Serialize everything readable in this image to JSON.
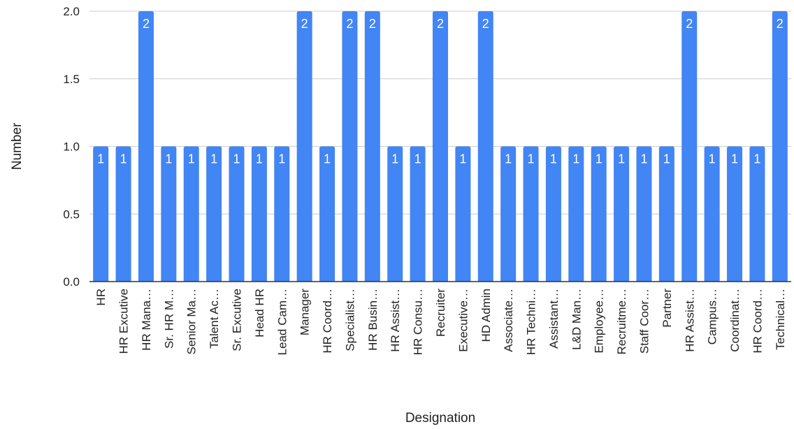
{
  "chart_data": {
    "type": "bar",
    "title": "",
    "xlabel": "Designation",
    "ylabel": "Number",
    "ylim": [
      0,
      2
    ],
    "yticks": [
      "0.0",
      "0.5",
      "1.0",
      "1.5",
      "2.0"
    ],
    "grid": true,
    "legend": "none",
    "bar_color": "#4285f4",
    "categories": [
      "HR",
      "HR Excutive",
      "HR Mana…",
      "Sr. HR M…",
      "Senior Ma…",
      "Talent Ac…",
      "Sr. Excutive",
      "Head HR",
      "Lead Cam…",
      "Manager",
      "HR Coord…",
      "Specialist…",
      "HR Busin…",
      "HR Assist…",
      "HR Consu…",
      "Recruiter",
      "Executive…",
      "HD Admin",
      "Associate…",
      "HR Techni…",
      "Assistant…",
      "L&D Man…",
      "Employee…",
      "Recruitme…",
      "Staff Coor…",
      "Partner",
      "HR Assist…",
      "Campus…",
      "Coordinat…",
      "HR Coord…",
      "Technical…"
    ],
    "values": [
      1,
      1,
      2,
      1,
      1,
      1,
      1,
      1,
      1,
      2,
      1,
      2,
      2,
      1,
      1,
      2,
      1,
      2,
      1,
      1,
      1,
      1,
      1,
      1,
      1,
      1,
      2,
      1,
      1,
      1,
      2
    ],
    "data_labels": [
      "1",
      "1",
      "2",
      "1",
      "1",
      "1",
      "1",
      "1",
      "1",
      "2",
      "1",
      "2",
      "2",
      "1",
      "1",
      "2",
      "1",
      "2",
      "1",
      "1",
      "1",
      "1",
      "1",
      "1",
      "1",
      "1",
      "2",
      "1",
      "1",
      "1",
      "2"
    ]
  }
}
